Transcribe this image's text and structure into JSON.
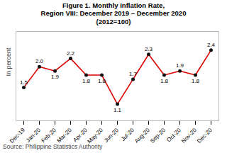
{
  "chart_data": {
    "type": "line",
    "title": "Figure 1. Monthly Inflation Rate,\nRegion VIII: December 2019 – December 2020\n(2012=100)",
    "ylabel": "In percent",
    "source": "Source: Philippine Statistics Authority",
    "categories": [
      "Dec-19",
      "Jan-20",
      "Feb-20",
      "Mar-20",
      "Apr-20",
      "May-20",
      "Jun-20",
      "Jul-20",
      "Aug-20",
      "Sep-20",
      "Oct-20",
      "Nov-20",
      "Dec-20"
    ],
    "values": [
      1.5,
      2.0,
      1.9,
      2.2,
      1.8,
      1.8,
      1.1,
      1.7,
      2.3,
      1.8,
      1.9,
      1.8,
      2.4
    ],
    "value_labels": [
      "1.5",
      "2.0",
      "1.9",
      "2.2",
      "1.8",
      "1.8",
      "1.1",
      "1.7",
      "2.3",
      "1.8",
      "1.9",
      "1.8",
      "2.4"
    ],
    "color": "#dd0000",
    "marker": "circle",
    "data_labels": true,
    "tick_labels": "x",
    "ylim": [
      0.7,
      2.85
    ]
  }
}
